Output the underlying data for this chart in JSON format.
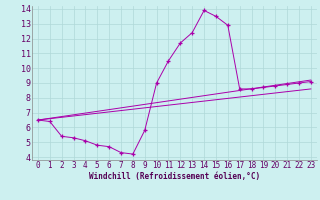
{
  "xlabel": "Windchill (Refroidissement éolien,°C)",
  "background_color": "#cdf0f0",
  "line_color": "#aa00aa",
  "xlim": [
    -0.5,
    23.5
  ],
  "ylim": [
    3.8,
    14.2
  ],
  "xticks": [
    0,
    1,
    2,
    3,
    4,
    5,
    6,
    7,
    8,
    9,
    10,
    11,
    12,
    13,
    14,
    15,
    16,
    17,
    18,
    19,
    20,
    21,
    22,
    23
  ],
  "yticks": [
    4,
    5,
    6,
    7,
    8,
    9,
    10,
    11,
    12,
    13,
    14
  ],
  "curve1_x": [
    0,
    1,
    2,
    3,
    4,
    5,
    6,
    7,
    8,
    9,
    10,
    11,
    12,
    13,
    14,
    15,
    16,
    17,
    18,
    19,
    20,
    21,
    22,
    23
  ],
  "curve1_y": [
    6.5,
    6.4,
    5.4,
    5.3,
    5.1,
    4.8,
    4.7,
    4.3,
    4.2,
    5.8,
    9.0,
    10.5,
    11.7,
    12.4,
    13.9,
    13.5,
    12.9,
    8.6,
    8.6,
    8.7,
    8.8,
    8.9,
    9.0,
    9.1
  ],
  "line2_x": [
    0,
    23
  ],
  "line2_y": [
    6.5,
    8.6
  ],
  "line3_x": [
    0,
    23
  ],
  "line3_y": [
    6.5,
    9.2
  ],
  "grid_color": "#b0d8d8",
  "tick_color": "#660066",
  "xlabel_color": "#550055",
  "tick_fontsize": 5.5,
  "xlabel_fontsize": 5.5
}
